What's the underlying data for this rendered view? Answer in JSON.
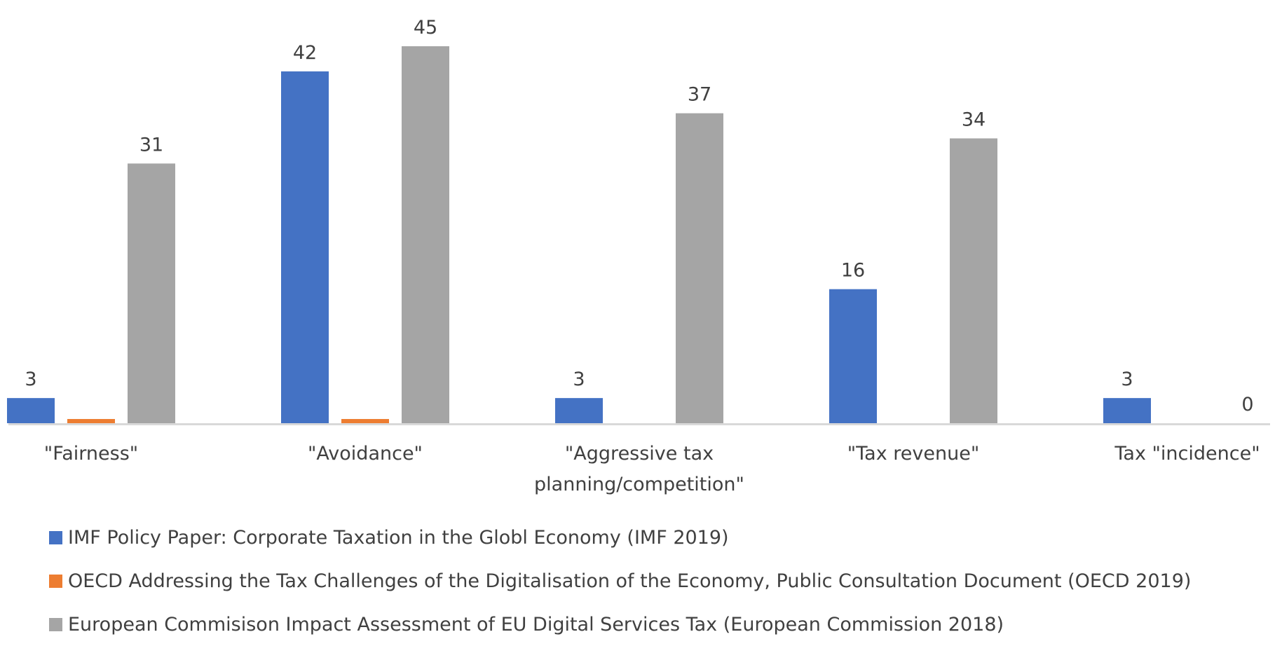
{
  "chart_data": {
    "type": "bar",
    "categories": [
      [
        "\"Fairness\""
      ],
      [
        "\"Avoidance\""
      ],
      [
        "\"Aggressive tax",
        "planning/competition\""
      ],
      [
        "\"Tax revenue\""
      ],
      [
        "Tax \"incidence\""
      ]
    ],
    "series": [
      {
        "name": "IMF Policy Paper: Corporate Taxation in the Globl Economy (IMF 2019)",
        "color": "#4472c4",
        "values": [
          3,
          42,
          3,
          16,
          3
        ],
        "labels": [
          "3",
          "42",
          "3",
          "16",
          "3"
        ]
      },
      {
        "name": "OECD Addressing the Tax Challenges of the Digitalisation of the Economy, Public Consultation Document (OECD 2019)",
        "color": "#ed7d31",
        "values": [
          0.5,
          0.5,
          0,
          0,
          0
        ],
        "labels": [
          "",
          "",
          "",
          "",
          ""
        ]
      },
      {
        "name": "European Commisison Impact Assessment of EU Digital Services Tax (European Commission 2018)",
        "color": "#a5a5a5",
        "values": [
          31,
          45,
          37,
          34,
          0
        ],
        "labels": [
          "31",
          "45",
          "37",
          "34",
          "0"
        ]
      }
    ],
    "ylim": [
      0,
      45
    ],
    "grid": false,
    "legend_position": "bottom",
    "axis_color": "#d9d9d9"
  }
}
